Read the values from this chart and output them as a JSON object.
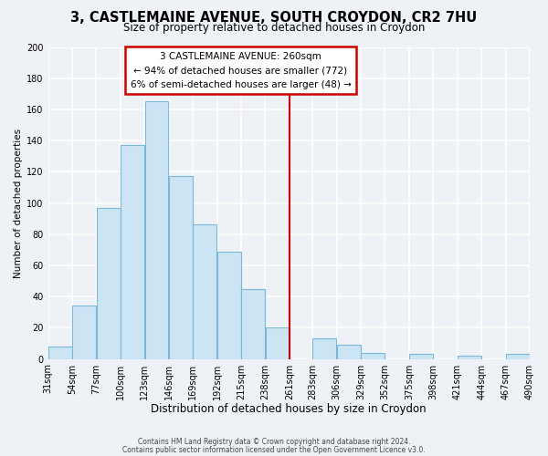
{
  "title": "3, CASTLEMAINE AVENUE, SOUTH CROYDON, CR2 7HU",
  "subtitle": "Size of property relative to detached houses in Croydon",
  "xlabel": "Distribution of detached houses by size in Croydon",
  "ylabel": "Number of detached properties",
  "bar_left_edges": [
    31,
    54,
    77,
    100,
    123,
    146,
    169,
    192,
    215,
    238,
    261,
    283,
    306,
    329,
    352,
    375,
    398,
    421,
    444,
    467
  ],
  "bar_heights": [
    8,
    34,
    97,
    137,
    165,
    117,
    86,
    69,
    45,
    20,
    0,
    13,
    9,
    4,
    0,
    3,
    0,
    2,
    0,
    3
  ],
  "bin_width": 23,
  "bar_color": "#cce5f5",
  "bar_edgecolor": "#7ab8d8",
  "tick_labels": [
    "31sqm",
    "54sqm",
    "77sqm",
    "100sqm",
    "123sqm",
    "146sqm",
    "169sqm",
    "192sqm",
    "215sqm",
    "238sqm",
    "261sqm",
    "283sqm",
    "306sqm",
    "329sqm",
    "352sqm",
    "375sqm",
    "398sqm",
    "421sqm",
    "444sqm",
    "467sqm",
    "490sqm"
  ],
  "vline_x": 261,
  "vline_color": "#cc0000",
  "ylim": [
    0,
    200
  ],
  "yticks": [
    0,
    20,
    40,
    60,
    80,
    100,
    120,
    140,
    160,
    180,
    200
  ],
  "annotation_title": "3 CASTLEMAINE AVENUE: 260sqm",
  "annotation_line1": "← 94% of detached houses are smaller (772)",
  "annotation_line2": "6% of semi-detached houses are larger (48) →",
  "footer_line1": "Contains HM Land Registry data © Crown copyright and database right 2024.",
  "footer_line2": "Contains public sector information licensed under the Open Government Licence v3.0.",
  "bg_color": "#eef2f7",
  "grid_color": "#ffffff",
  "title_fontsize": 10.5,
  "subtitle_fontsize": 8.5,
  "xlabel_fontsize": 8.5,
  "ylabel_fontsize": 7.5,
  "tick_fontsize": 7,
  "footer_fontsize": 5.5,
  "annot_fontsize": 7.5
}
